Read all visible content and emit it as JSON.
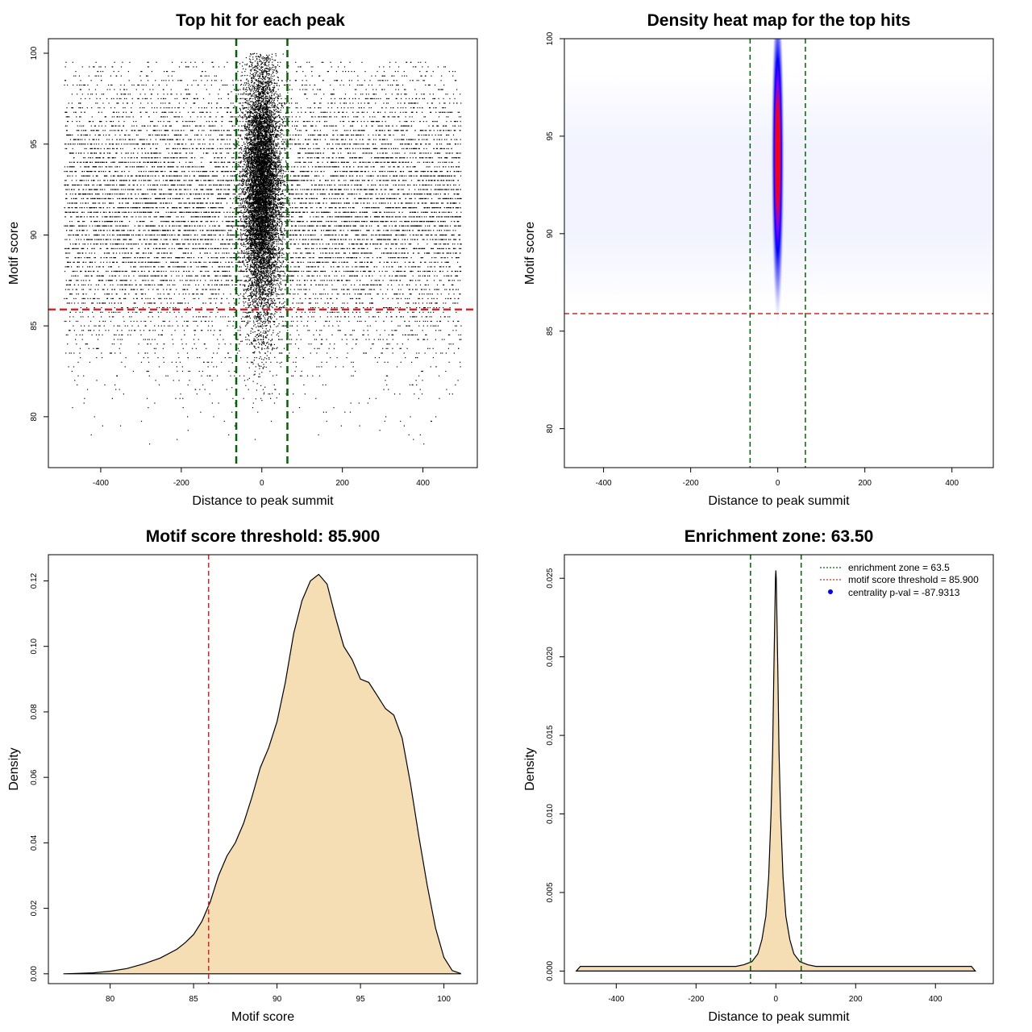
{
  "chart_data": [
    {
      "id": "scatter",
      "type": "scatter",
      "title": "Top hit for each peak",
      "xlabel": "Distance to peak summit",
      "ylabel": "Motif score",
      "xlim": [
        -530,
        535
      ],
      "ylim": [
        77.2,
        100.8
      ],
      "xticks": [
        "-400",
        "-200",
        "0",
        "200",
        "400"
      ],
      "xtick_values": [
        -400,
        -200,
        0,
        200,
        400
      ],
      "yticks": [
        "80",
        "85",
        "90",
        "95",
        "100"
      ],
      "ytick_values": [
        80,
        85,
        90,
        95,
        100
      ],
      "vlines": [
        -63.5,
        63.5
      ],
      "hline": 85.9,
      "background_points": {
        "n": 12000,
        "x_range": [
          -490,
          495
        ],
        "y_range": [
          78.5,
          99.5
        ],
        "y_mode": 91.5
      },
      "central_points": {
        "n": 9000,
        "x_sd": 22,
        "y_range": [
          80,
          100
        ],
        "y_center": 92.5
      },
      "point_color": "#000000",
      "vline_color": "#006400",
      "hline_color": "#d62728"
    },
    {
      "id": "heatmap",
      "type": "heatmap",
      "title": "Density heat map for the top hits",
      "xlabel": "Distance to peak summit",
      "ylabel": "Motif score",
      "xlim": [
        -490,
        495
      ],
      "ylim": [
        78.0,
        100.0
      ],
      "xticks": [
        "-400",
        "-200",
        "0",
        "200",
        "400"
      ],
      "xtick_values": [
        -400,
        -200,
        0,
        200,
        400
      ],
      "yticks": [
        "80",
        "85",
        "90",
        "95",
        "100"
      ],
      "ytick_values": [
        80,
        85,
        90,
        95,
        100
      ],
      "vlines": [
        -63.5,
        63.5
      ],
      "hline": 85.9,
      "hotspot": {
        "x": 0,
        "y_center": 94,
        "y_sd": 3.2,
        "x_sd": 6
      },
      "colors": {
        "low": "#ffffff",
        "mid": "#0000ff",
        "high": "#ff0000"
      },
      "vline_color": "#006400",
      "hline_color": "#d62728"
    },
    {
      "id": "score-density",
      "type": "area",
      "title": "Motif score threshold: 85.900",
      "xlabel": "Motif score",
      "ylabel": "Density",
      "xlim": [
        76.3,
        102.0
      ],
      "ylim": [
        -0.003,
        0.128
      ],
      "xticks": [
        "80",
        "85",
        "90",
        "95",
        "100"
      ],
      "xtick_values": [
        80,
        85,
        90,
        95,
        100
      ],
      "yticks": [
        "0.00",
        "0.02",
        "0.04",
        "0.06",
        "0.08",
        "0.10",
        "0.12"
      ],
      "ytick_values": [
        0,
        0.02,
        0.04,
        0.06,
        0.08,
        0.1,
        0.12
      ],
      "x": [
        77.2,
        78,
        79,
        80,
        81,
        82,
        83,
        84,
        84.5,
        85,
        85.5,
        86,
        86.5,
        87,
        87.5,
        88,
        88.5,
        89,
        89.5,
        90,
        90.5,
        91,
        91.5,
        92,
        92.5,
        93,
        93.5,
        94,
        94.5,
        95,
        95.5,
        96,
        96.5,
        97,
        97.5,
        98,
        98.5,
        99,
        99.5,
        100,
        100.5,
        101
      ],
      "y": [
        0,
        0.0001,
        0.0003,
        0.0008,
        0.0016,
        0.003,
        0.0048,
        0.0075,
        0.0095,
        0.012,
        0.016,
        0.022,
        0.03,
        0.036,
        0.04,
        0.046,
        0.054,
        0.063,
        0.069,
        0.077,
        0.089,
        0.104,
        0.114,
        0.12,
        0.122,
        0.119,
        0.109,
        0.1,
        0.096,
        0.09,
        0.089,
        0.085,
        0.081,
        0.079,
        0.072,
        0.058,
        0.042,
        0.027,
        0.014,
        0.005,
        0.001,
        0.0001
      ],
      "fill": "#f5deb3",
      "vline": 85.9,
      "vline_color": "#d62728"
    },
    {
      "id": "distance-density",
      "type": "area",
      "title": "Enrichment zone: 63.50",
      "xlabel": "Distance to peak summit",
      "ylabel": "Density",
      "xlim": [
        -530,
        545
      ],
      "ylim": [
        -0.0008,
        0.0265
      ],
      "xticks": [
        "-400",
        "-200",
        "0",
        "200",
        "400"
      ],
      "xtick_values": [
        -400,
        -200,
        0,
        200,
        400
      ],
      "yticks": [
        "0.000",
        "0.005",
        "0.010",
        "0.015",
        "0.020",
        "0.025"
      ],
      "ytick_values": [
        0,
        0.005,
        0.01,
        0.015,
        0.02,
        0.025
      ],
      "x": [
        -500,
        -490,
        -450,
        -400,
        -300,
        -200,
        -100,
        -80,
        -60,
        -45,
        -35,
        -25,
        -18,
        -12,
        -8,
        -5,
        -3,
        -1,
        0,
        1,
        3,
        5,
        8,
        12,
        18,
        25,
        35,
        45,
        60,
        80,
        100,
        200,
        300,
        400,
        480,
        490,
        500
      ],
      "y": [
        0,
        0.0003,
        0.0003,
        0.0003,
        0.0003,
        0.0003,
        0.0003,
        0.0004,
        0.0006,
        0.0011,
        0.002,
        0.0035,
        0.006,
        0.01,
        0.014,
        0.019,
        0.022,
        0.025,
        0.0255,
        0.025,
        0.022,
        0.019,
        0.014,
        0.01,
        0.006,
        0.0035,
        0.002,
        0.0011,
        0.0006,
        0.0004,
        0.0003,
        0.0003,
        0.0003,
        0.0003,
        0.0003,
        0.0003,
        0
      ],
      "fill": "#f5deb3",
      "vlines": [
        -63.5,
        63.5
      ],
      "vline_color": "#006400",
      "legend": [
        {
          "label": "enrichment zone = 63.5",
          "color": "#006400",
          "style": "dotted-line"
        },
        {
          "label": "motif score threshold = 85.900",
          "color": "#d62728",
          "style": "dotted-line"
        },
        {
          "label": "centrality p-val = -87.9313",
          "color": "#0000ff",
          "style": "point"
        }
      ],
      "legend_position": "top-right"
    }
  ]
}
